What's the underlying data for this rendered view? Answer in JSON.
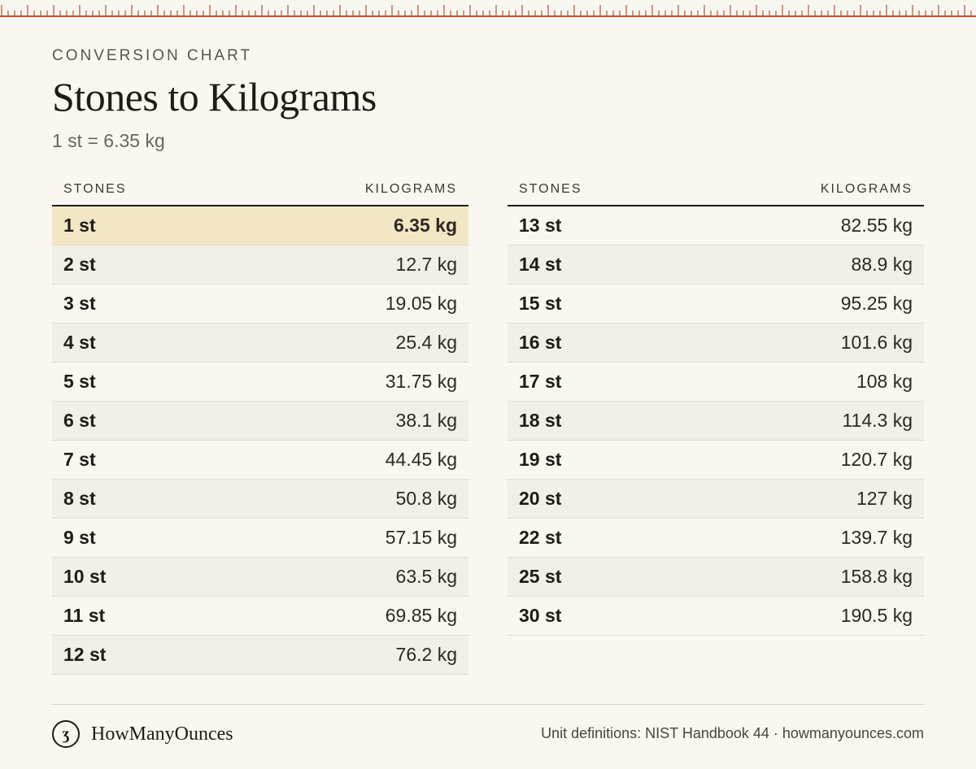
{
  "header": {
    "eyebrow": "CONVERSION CHART",
    "title": "Stones to Kilograms",
    "subtitle": "1 st = 6.35 kg"
  },
  "columns": {
    "stones": "STONES",
    "kilograms": "KILOGRAMS"
  },
  "left_rows": [
    {
      "st": "1 st",
      "kg": "6.35 kg",
      "highlight": true
    },
    {
      "st": "2 st",
      "kg": "12.7 kg"
    },
    {
      "st": "3 st",
      "kg": "19.05 kg"
    },
    {
      "st": "4 st",
      "kg": "25.4 kg"
    },
    {
      "st": "5 st",
      "kg": "31.75 kg"
    },
    {
      "st": "6 st",
      "kg": "38.1 kg"
    },
    {
      "st": "7 st",
      "kg": "44.45 kg"
    },
    {
      "st": "8 st",
      "kg": "50.8 kg"
    },
    {
      "st": "9 st",
      "kg": "57.15 kg"
    },
    {
      "st": "10 st",
      "kg": "63.5 kg"
    },
    {
      "st": "11 st",
      "kg": "69.85 kg"
    },
    {
      "st": "12 st",
      "kg": "76.2 kg"
    }
  ],
  "right_rows": [
    {
      "st": "13 st",
      "kg": "82.55 kg"
    },
    {
      "st": "14 st",
      "kg": "88.9 kg"
    },
    {
      "st": "15 st",
      "kg": "95.25 kg"
    },
    {
      "st": "16 st",
      "kg": "101.6 kg"
    },
    {
      "st": "17 st",
      "kg": "108 kg"
    },
    {
      "st": "18 st",
      "kg": "114.3 kg"
    },
    {
      "st": "19 st",
      "kg": "120.7 kg"
    },
    {
      "st": "20 st",
      "kg": "127 kg"
    },
    {
      "st": "22 st",
      "kg": "139.7 kg"
    },
    {
      "st": "25 st",
      "kg": "158.8 kg"
    },
    {
      "st": "30 st",
      "kg": "190.5 kg"
    }
  ],
  "footer": {
    "brand_mark": "ʒ",
    "brand_name": "HowManyOunces",
    "source": "Unit definitions: NIST Handbook 44 · howmanyounces.com"
  },
  "colors": {
    "ruler": "#b0582e",
    "highlight": "#f3e6c4",
    "background": "#f9f7f2"
  },
  "icons": {
    "brand": "ounce-logo-icon",
    "ruler": "ruler-ticks-decoration"
  }
}
